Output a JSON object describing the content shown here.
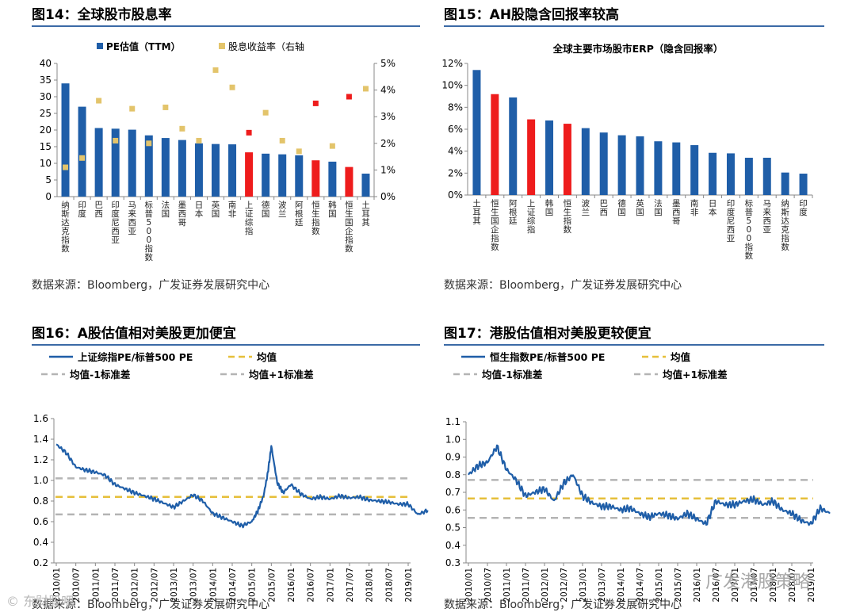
{
  "colors": {
    "pe": "#1f5ea8",
    "div": "#e3c46b",
    "highlight": "#ee1c1c",
    "line": "#1f5ea8",
    "mean": "#e6bf3a",
    "band": "#b4b4b4",
    "rule": "#3b6aa6"
  },
  "watermarks": {
    "left": "© 东财股吧",
    "right": "广发港股策略"
  },
  "fig14": {
    "title": "图14：全球股市股息率",
    "source": "数据来源：Bloomberg，广发证券发展研究中心",
    "chart_data": {
      "type": "bar",
      "categories": [
        "纳斯达克指数",
        "印度",
        "巴西",
        "印度尼西亚",
        "马来西亚",
        "标普500指数",
        "法国",
        "墨西哥",
        "日本",
        "英国",
        "南非",
        "上证综指",
        "德国",
        "波兰",
        "阿根廷",
        "恒生指数",
        "韩国",
        "恒生国企指数",
        "土耳其"
      ],
      "highlight": [
        11,
        15,
        17
      ],
      "series": [
        {
          "name": "PE估值（TTM）",
          "axis": "left",
          "values": [
            34.0,
            27.0,
            20.6,
            20.4,
            20.1,
            18.4,
            17.6,
            17.0,
            16.0,
            15.8,
            15.7,
            13.3,
            12.9,
            12.7,
            12.4,
            10.9,
            10.5,
            8.9,
            6.9
          ]
        },
        {
          "name": "股息收益率（右轴",
          "axis": "right",
          "values": [
            1.1,
            1.45,
            3.6,
            2.1,
            3.3,
            2.0,
            3.35,
            2.55,
            2.1,
            4.75,
            4.1,
            2.4,
            3.15,
            2.1,
            1.7,
            3.5,
            1.9,
            3.75,
            4.05
          ]
        }
      ],
      "ylim": [
        0,
        40
      ],
      "y_ticks": [
        0,
        5,
        10,
        15,
        20,
        25,
        30,
        35,
        40
      ],
      "y2lim": [
        0,
        5
      ],
      "y2_ticks": [
        "0%",
        "1%",
        "2%",
        "3%",
        "4%",
        "5%"
      ]
    }
  },
  "fig15": {
    "title": "图15：AH股隐含回报率较高",
    "source": "数据来源：Bloomberg，广发证券发展研究中心",
    "chart_data": {
      "type": "bar",
      "title": "全球主要市场股市ERP（隐含回报率）",
      "categories": [
        "土耳其",
        "恒生国企指数",
        "阿根廷",
        "上证综指",
        "韩国",
        "恒生指数",
        "波兰",
        "巴西",
        "德国",
        "英国",
        "法国",
        "墨西哥",
        "南非",
        "日本",
        "印度尼西亚",
        "标普500指数",
        "马来西亚",
        "纳斯达克指数",
        "印度"
      ],
      "highlight": [
        1,
        3,
        5
      ],
      "values": [
        11.4,
        9.2,
        8.9,
        6.9,
        6.8,
        6.5,
        6.1,
        5.7,
        5.45,
        5.35,
        4.9,
        4.8,
        4.55,
        3.85,
        3.8,
        3.4,
        3.4,
        2.05,
        1.95
      ],
      "ylim": [
        0,
        12
      ],
      "y_ticks": [
        "0%",
        "2%",
        "4%",
        "6%",
        "8%",
        "10%",
        "12%"
      ]
    }
  },
  "fig16": {
    "title": "图16：A股估值相对美股更加便宜",
    "source": "数据来源：Bloomberg，广发证券发展研究中心",
    "chart_data": {
      "type": "line",
      "legend": {
        "line": "上证综指PE/标普500 PE",
        "mean": "均值",
        "minus": "均值-1标准差",
        "plus": "均值+1标准差"
      },
      "ylim": [
        0.2,
        1.6
      ],
      "y_ticks": [
        "0.2",
        "0.4",
        "0.6",
        "0.8",
        "1.0",
        "1.2",
        "1.4",
        "1.6"
      ],
      "x_ticks": [
        "2010/01",
        "2010/07",
        "2011/01",
        "2011/07",
        "2012/01",
        "2012/07",
        "2013/01",
        "2013/07",
        "2014/01",
        "2014/07",
        "2015/01",
        "2015/07",
        "2016/01",
        "2016/07",
        "2017/01",
        "2017/07",
        "2018/01",
        "2018/07",
        "2019/01"
      ],
      "mean": 0.84,
      "plus_1sd": 1.02,
      "minus_1sd": 0.67,
      "x": [
        0,
        0.5,
        1,
        1.5,
        2,
        2.5,
        3,
        3.5,
        4,
        4.5,
        5,
        5.5,
        6,
        6.5,
        7,
        7.5,
        8,
        8.5,
        9,
        9.5,
        10,
        10.3,
        10.6,
        10.8,
        11,
        11.3,
        11.6,
        12,
        12.5,
        13,
        13.5,
        14,
        14.5,
        15,
        15.5,
        16,
        16.5,
        17,
        17.5,
        18,
        18.5,
        19
      ],
      "values": [
        1.35,
        1.27,
        1.13,
        1.1,
        1.08,
        1.05,
        0.96,
        0.92,
        0.88,
        0.85,
        0.82,
        0.78,
        0.74,
        0.8,
        0.86,
        0.8,
        0.68,
        0.64,
        0.6,
        0.56,
        0.6,
        0.7,
        0.85,
        1.05,
        1.33,
        0.98,
        0.88,
        0.96,
        0.87,
        0.82,
        0.84,
        0.82,
        0.85,
        0.83,
        0.84,
        0.81,
        0.8,
        0.79,
        0.77,
        0.77,
        0.67,
        0.71
      ]
    }
  },
  "fig17": {
    "title": "图17：港股估值相对美股更较便宜",
    "source": "数据来源：Bloomberg，广发证券发展研究中心",
    "chart_data": {
      "type": "line",
      "legend": {
        "line": "恒生指数PE/标普500 PE",
        "mean": "均值",
        "minus": "均值-1标准差",
        "plus": "均值+1标准差"
      },
      "ylim": [
        0.3,
        1.1
      ],
      "y_ticks": [
        "0.3",
        "0.4",
        "0.5",
        "0.6",
        "0.7",
        "0.8",
        "0.9",
        "1.0",
        "1.1"
      ],
      "x_ticks": [
        "2010/01",
        "2010/07",
        "2011/01",
        "2011/07",
        "2012/01",
        "2012/07",
        "2013/01",
        "2013/07",
        "2014/01",
        "2014/07",
        "2015/01",
        "2015/07",
        "2016/01",
        "2016/07",
        "2017/01",
        "2017/07",
        "2018/01",
        "2018/07",
        "2019/01"
      ],
      "mean": 0.665,
      "plus_1sd": 0.77,
      "minus_1sd": 0.555,
      "x": [
        0,
        0.5,
        1,
        1.5,
        2,
        2.5,
        3,
        3.5,
        4,
        4.5,
        5,
        5.5,
        6,
        6.5,
        7,
        7.5,
        8,
        8.5,
        9,
        9.5,
        10,
        10.5,
        11,
        11.5,
        12,
        12.5,
        13,
        13.5,
        14,
        14.5,
        15,
        15.5,
        16,
        16.5,
        17,
        17.5,
        18,
        18.5,
        19
      ],
      "values": [
        0.8,
        0.85,
        0.87,
        0.96,
        0.83,
        0.77,
        0.68,
        0.7,
        0.72,
        0.65,
        0.75,
        0.8,
        0.68,
        0.64,
        0.62,
        0.62,
        0.6,
        0.61,
        0.58,
        0.56,
        0.58,
        0.57,
        0.55,
        0.58,
        0.55,
        0.52,
        0.65,
        0.63,
        0.63,
        0.65,
        0.66,
        0.63,
        0.65,
        0.6,
        0.58,
        0.54,
        0.52,
        0.61,
        0.58
      ]
    }
  }
}
